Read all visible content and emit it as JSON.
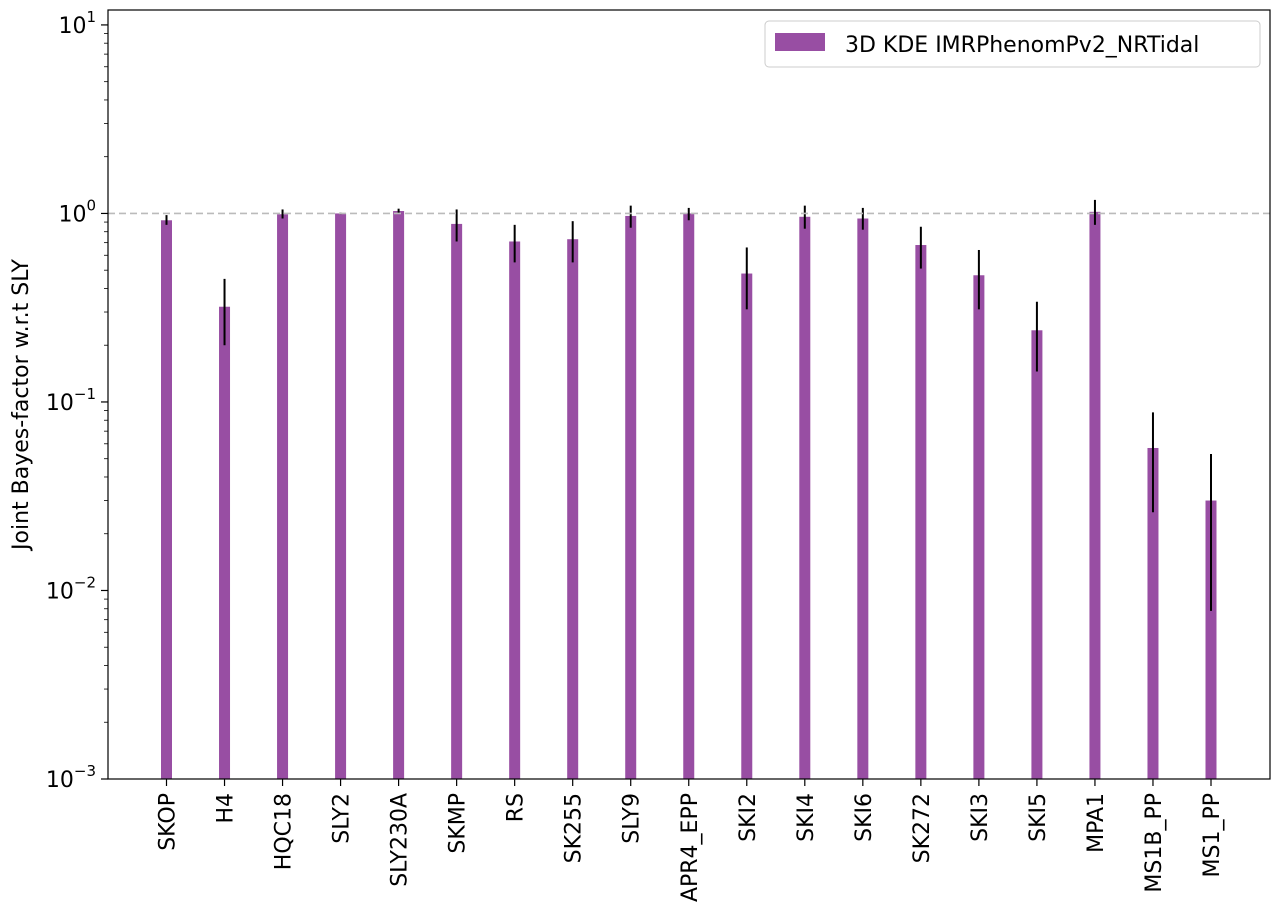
{
  "chart_data": {
    "type": "bar",
    "ylabel": "Joint Bayes-factor w.r.t SLY",
    "yscale": "log",
    "ylim": [
      0.001,
      12
    ],
    "yticks": [
      {
        "base": "10",
        "exp": "−3",
        "value": 0.001
      },
      {
        "base": "10",
        "exp": "−2",
        "value": 0.01
      },
      {
        "base": "10",
        "exp": "−1",
        "value": 0.1
      },
      {
        "base": "10",
        "exp": "0",
        "value": 1
      },
      {
        "base": "10",
        "exp": "1",
        "value": 10
      }
    ],
    "reference_line": 1,
    "grid": false,
    "legend_position": "top-right",
    "categories": [
      "SKOP",
      "H4",
      "HQC18",
      "SLY2",
      "SLY230A",
      "SKMP",
      "RS",
      "SK255",
      "SLY9",
      "APR4_EPP",
      "SKI2",
      "SKI4",
      "SKI6",
      "SK272",
      "SKI3",
      "SKI5",
      "MPA1",
      "MS1B_PP",
      "MS1_PP"
    ],
    "series": [
      {
        "name": "3D KDE IMRPhenomPv2_NRTidal",
        "color": "#984ea3",
        "values": [
          0.92,
          0.32,
          0.99,
          1.0,
          1.03,
          0.88,
          0.71,
          0.73,
          0.97,
          1.0,
          0.48,
          0.96,
          0.94,
          0.68,
          0.47,
          0.24,
          1.02,
          0.057,
          0.03
        ],
        "err_low": [
          0.87,
          0.2,
          0.94,
          0.99,
          1.0,
          0.71,
          0.55,
          0.55,
          0.84,
          0.92,
          0.31,
          0.83,
          0.82,
          0.51,
          0.31,
          0.145,
          0.87,
          0.026,
          0.0078
        ],
        "err_high": [
          0.98,
          0.45,
          1.05,
          1.01,
          1.06,
          1.05,
          0.87,
          0.91,
          1.1,
          1.07,
          0.66,
          1.1,
          1.07,
          0.85,
          0.64,
          0.34,
          1.18,
          0.088,
          0.053
        ]
      }
    ]
  }
}
